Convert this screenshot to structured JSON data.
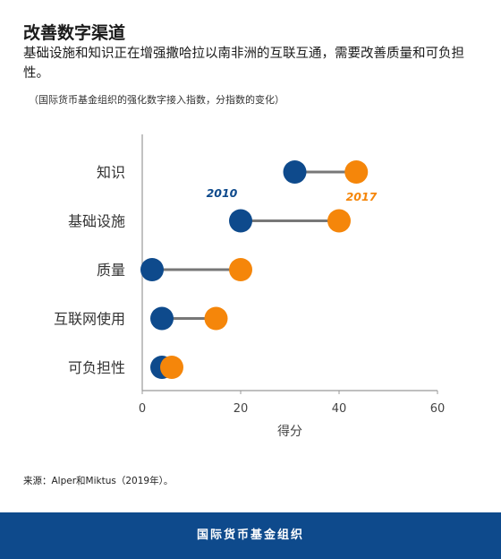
{
  "header": {
    "title": "改善数字渠道",
    "subtitle": "基础设施和知识正在增强撒哈拉以南非洲的互联互通，需要改善质量和可负担性。",
    "note": "（国际货币基金组织的强化数字接入指数，分指数的变化）"
  },
  "chart_data": {
    "type": "dumbbell",
    "categories": [
      "知识",
      "基础设施",
      "质量",
      "互联网使用",
      "可负担性"
    ],
    "series": [
      {
        "name": "2010",
        "values": [
          31,
          20,
          2,
          4,
          4
        ],
        "color": "#0e4a8c"
      },
      {
        "name": "2017",
        "values": [
          43.5,
          40,
          20,
          15,
          6
        ],
        "color": "#f5860a"
      }
    ],
    "xlabel": "得分",
    "xlim": [
      0,
      60
    ],
    "xticks": [
      0,
      20,
      40,
      60
    ],
    "connector_color": "#777777",
    "grid": false
  },
  "source": "来源：Alper和Miktus（2019年）。",
  "footer": {
    "brand": "国际货币基金组织"
  }
}
